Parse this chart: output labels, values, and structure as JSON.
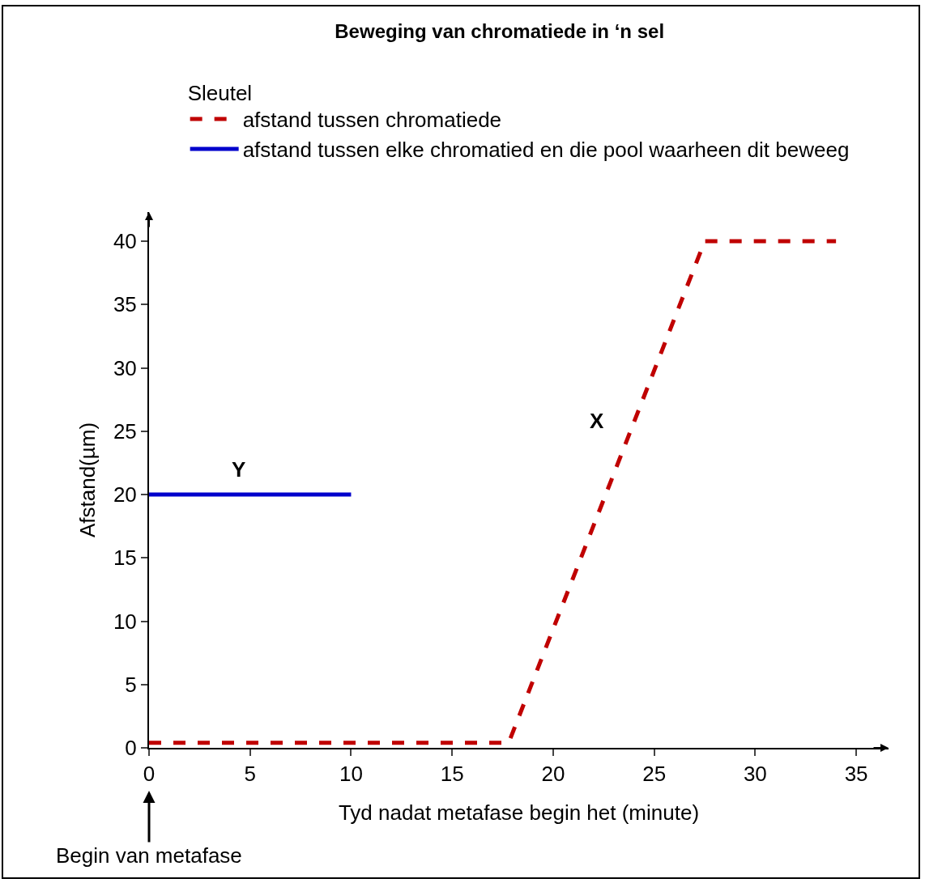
{
  "chart_data": {
    "type": "line",
    "title": "Beweging van chromatiede in ‘n sel",
    "xlabel": "Tyd nadat metafase begin het (minute)",
    "ylabel": "Afstand(µm)",
    "legend_title": "Sleutel",
    "series": [
      {
        "name": "afstand tussen chromatiede",
        "color": "#c00000",
        "line_style": "dashed",
        "x": [
          0,
          17.8,
          27.5,
          34
        ],
        "values": [
          0.4,
          0.4,
          40,
          40
        ]
      },
      {
        "name": "afstand tussen elke chromatied en die pool waarheen dit beweeg",
        "color": "#0000cc",
        "line_style": "solid",
        "x": [
          0,
          10
        ],
        "values": [
          20,
          20
        ]
      }
    ],
    "xlim": [
      0,
      36.6
    ],
    "xticks": [
      0,
      5,
      10,
      15,
      20,
      25,
      30,
      35
    ],
    "ylim": [
      0,
      42.3
    ],
    "yticks": [
      0,
      5,
      10,
      15,
      20,
      25,
      30,
      35,
      40
    ],
    "annotations": [
      "X",
      "Y",
      "Begin van metafase"
    ],
    "grid": false,
    "legend": "top left",
    "marker": "none"
  }
}
